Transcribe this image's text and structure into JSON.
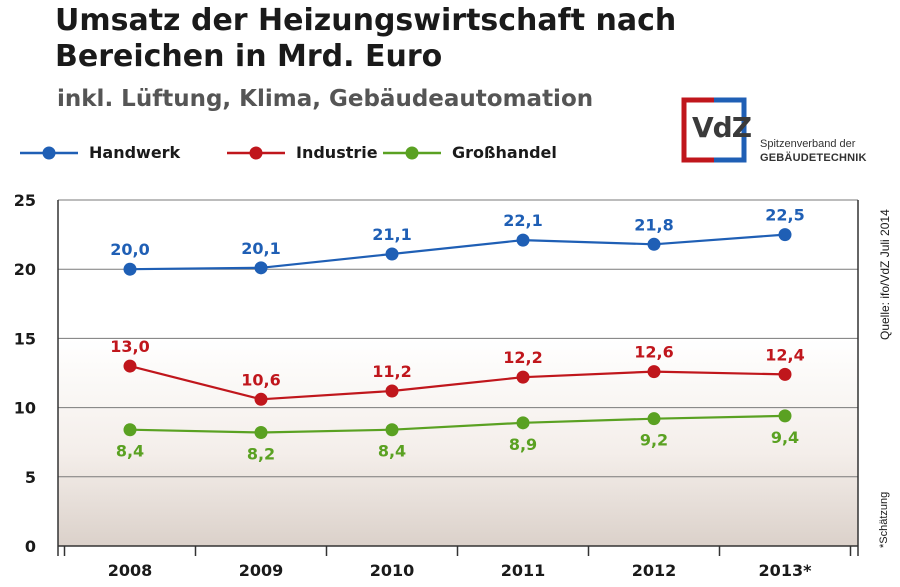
{
  "title": "Umsatz der Heizungswirtschaft nach Bereichen in Mrd. Euro",
  "subtitle": "inkl. Lüftung, Klima, Gebäudeautomation",
  "logo": {
    "text": "VdZ",
    "tagline1": "Spitzenverband der",
    "tagline2": "GEBÄUDETECHNIK"
  },
  "source": "Quelle: ifo/VdZ Juli 2014",
  "footnote": "*Schätzung",
  "colors": {
    "Handwerk": "#1f5fb5",
    "Industrie": "#c0161c",
    "Großhandel": "#5aa122",
    "logo_blue": "#1f5fb5",
    "logo_red": "#c0161c"
  },
  "chart_data": {
    "type": "line",
    "x": [
      "2008",
      "2009",
      "2010",
      "2011",
      "2012",
      "2013*"
    ],
    "ylim": [
      0,
      25
    ],
    "yticks": [
      "0",
      "5",
      "10",
      "15",
      "20",
      "25"
    ],
    "grid": true,
    "legend": "top-left",
    "series": [
      {
        "name": "Handwerk",
        "values": [
          20.0,
          20.1,
          21.1,
          22.1,
          21.8,
          22.5
        ],
        "labels": [
          "20,0",
          "20,1",
          "21,1",
          "22,1",
          "21,8",
          "22,5"
        ]
      },
      {
        "name": "Industrie",
        "values": [
          13.0,
          10.6,
          11.2,
          12.2,
          12.6,
          12.4
        ],
        "labels": [
          "13,0",
          "10,6",
          "11,2",
          "12,2",
          "12,6",
          "12,4"
        ]
      },
      {
        "name": "Großhandel",
        "values": [
          8.4,
          8.2,
          8.4,
          8.9,
          9.2,
          9.4
        ],
        "labels": [
          "8,4",
          "8,2",
          "8,4",
          "8,9",
          "9,2",
          "9,4"
        ]
      }
    ]
  }
}
